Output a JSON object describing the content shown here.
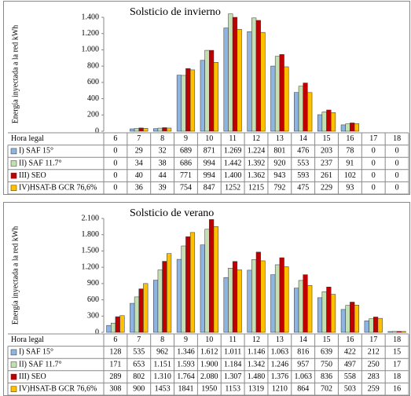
{
  "chart_data": [
    {
      "type": "bar",
      "title": "Solsticio de invierno",
      "y_label": "Energía inyectada a la red kWh",
      "table_header": "Hora legal",
      "categories": [
        "6",
        "7",
        "8",
        "9",
        "10",
        "11",
        "12",
        "13",
        "14",
        "15",
        "16",
        "17",
        "18"
      ],
      "ylim": [
        0,
        1400
      ],
      "yticks": [
        0,
        200,
        400,
        600,
        800,
        {
          "value": 1000,
          "label": "1.000"
        },
        {
          "value": 1200,
          "label": "1.200"
        },
        {
          "value": 1400,
          "label": "1.400"
        }
      ],
      "grid": false,
      "series": [
        {
          "name": "I) SAF 15°",
          "color": "#8db4e2",
          "values": [
            0,
            29,
            32,
            689,
            871,
            1269,
            1224,
            801,
            476,
            203,
            78,
            0,
            0
          ],
          "value_labels": [
            "0",
            "29",
            "32",
            "689",
            "871",
            "1.269",
            "1.224",
            "801",
            "476",
            "203",
            "78",
            "0",
            "0"
          ]
        },
        {
          "name": "II) SAF 11.7°",
          "color": "#c4e0b2",
          "values": [
            0,
            34,
            38,
            686,
            994,
            1442,
            1392,
            920,
            553,
            237,
            91,
            0,
            0
          ],
          "value_labels": [
            "0",
            "34",
            "38",
            "686",
            "994",
            "1.442",
            "1.392",
            "920",
            "553",
            "237",
            "91",
            "0",
            "0"
          ]
        },
        {
          "name": "III) SEO",
          "color": "#c00000",
          "values": [
            0,
            40,
            44,
            771,
            994,
            1400,
            1362,
            943,
            593,
            261,
            102,
            0,
            0
          ],
          "value_labels": [
            "0",
            "40",
            "44",
            "771",
            "994",
            "1.400",
            "1.362",
            "943",
            "593",
            "261",
            "102",
            "0",
            "0"
          ]
        },
        {
          "name": "IV)HSAT-B GCR 76,6%",
          "color": "#ffc000",
          "values": [
            0,
            36,
            39,
            754,
            847,
            1252,
            1215,
            792,
            475,
            229,
            93,
            0,
            0
          ],
          "value_labels": [
            "0",
            "36",
            "39",
            "754",
            "847",
            "1252",
            "1215",
            "792",
            "475",
            "229",
            "93",
            "0",
            "0"
          ]
        }
      ]
    },
    {
      "type": "bar",
      "title": "Solsticio de verano",
      "y_label": "Energía inyectada a la red kWh",
      "table_header": "Hora legal",
      "categories": [
        "6",
        "7",
        "8",
        "9",
        "10",
        "11",
        "12",
        "13",
        "14",
        "15",
        "16",
        "17",
        "18"
      ],
      "ylim": [
        0,
        2100
      ],
      "yticks": [
        0,
        300,
        600,
        900,
        {
          "value": 1200,
          "label": "1.200"
        },
        {
          "value": 1500,
          "label": "1.500"
        },
        {
          "value": 1800,
          "label": "1.800"
        },
        {
          "value": 2100,
          "label": "2.100"
        }
      ],
      "grid": false,
      "series": [
        {
          "name": "I) SAF 15°",
          "color": "#8db4e2",
          "values": [
            128,
            535,
            962,
            1346,
            1612,
            1011,
            1146,
            1063,
            816,
            639,
            422,
            212,
            15
          ],
          "value_labels": [
            "128",
            "535",
            "962",
            "1.346",
            "1.612",
            "1.011",
            "1.146",
            "1.063",
            "816",
            "639",
            "422",
            "212",
            "15"
          ]
        },
        {
          "name": "II) SAF 11.7°",
          "color": "#c4e0b2",
          "values": [
            171,
            653,
            1151,
            1593,
            1900,
            1184,
            1342,
            1246,
            957,
            750,
            497,
            250,
            17
          ],
          "value_labels": [
            "171",
            "653",
            "1.151",
            "1.593",
            "1.900",
            "1.184",
            "1.342",
            "1.246",
            "957",
            "750",
            "497",
            "250",
            "17"
          ]
        },
        {
          "name": "III) SEO",
          "color": "#c00000",
          "values": [
            289,
            802,
            1310,
            1764,
            2080,
            1307,
            1480,
            1376,
            1063,
            836,
            558,
            283,
            18
          ],
          "value_labels": [
            "289",
            "802",
            "1.310",
            "1.764",
            "2.080",
            "1.307",
            "1.480",
            "1.376",
            "1.063",
            "836",
            "558",
            "283",
            "18"
          ]
        },
        {
          "name": "IV)HSAT-B GCR 76,6%",
          "color": "#ffc000",
          "values": [
            308,
            900,
            1453,
            1841,
            1950,
            1153,
            1319,
            1210,
            864,
            702,
            503,
            259,
            16
          ],
          "value_labels": [
            "308",
            "900",
            "1453",
            "1841",
            "1950",
            "1153",
            "1319",
            "1210",
            "864",
            "702",
            "503",
            "259",
            "16"
          ]
        }
      ]
    }
  ]
}
